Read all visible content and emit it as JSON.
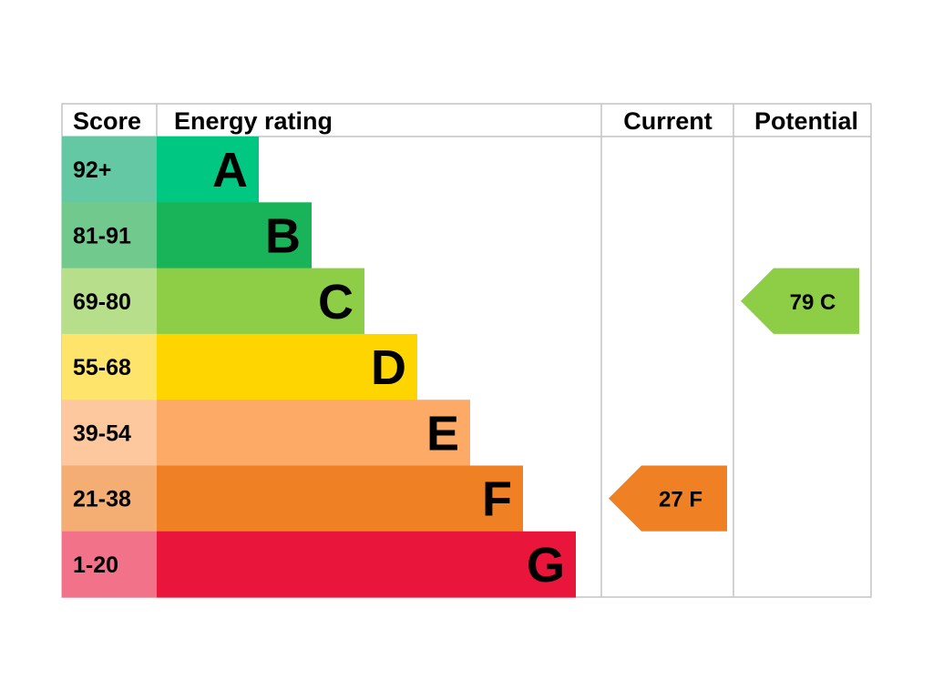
{
  "headers": {
    "score": "Score",
    "energy_rating": "Energy rating",
    "current": "Current",
    "potential": "Potential"
  },
  "chart_data": {
    "type": "bar",
    "bands": [
      {
        "letter": "A",
        "range": "92+",
        "min": 92,
        "max": 100,
        "color": "#00c781",
        "score_bg": "#63c8a3"
      },
      {
        "letter": "B",
        "range": "81-91",
        "min": 81,
        "max": 91,
        "color": "#19b459",
        "score_bg": "#72c98e"
      },
      {
        "letter": "C",
        "range": "69-80",
        "min": 69,
        "max": 80,
        "color": "#8dce46",
        "score_bg": "#b6de8b"
      },
      {
        "letter": "D",
        "range": "55-68",
        "min": 55,
        "max": 68,
        "color": "#ffd500",
        "score_bg": "#ffe46b"
      },
      {
        "letter": "E",
        "range": "39-54",
        "min": 39,
        "max": 54,
        "color": "#fcaa65",
        "score_bg": "#fdc89d"
      },
      {
        "letter": "F",
        "range": "21-38",
        "min": 21,
        "max": 38,
        "color": "#ef8023",
        "score_bg": "#f4ae74"
      },
      {
        "letter": "G",
        "range": "1-20",
        "min": 1,
        "max": 20,
        "color": "#e9153b",
        "score_bg": "#f17289"
      }
    ],
    "current": {
      "score": 27,
      "band": "F",
      "label": "27  F",
      "color": "#ef8023"
    },
    "potential": {
      "score": 79,
      "band": "C",
      "label": "79  C",
      "color": "#8dce46"
    }
  }
}
